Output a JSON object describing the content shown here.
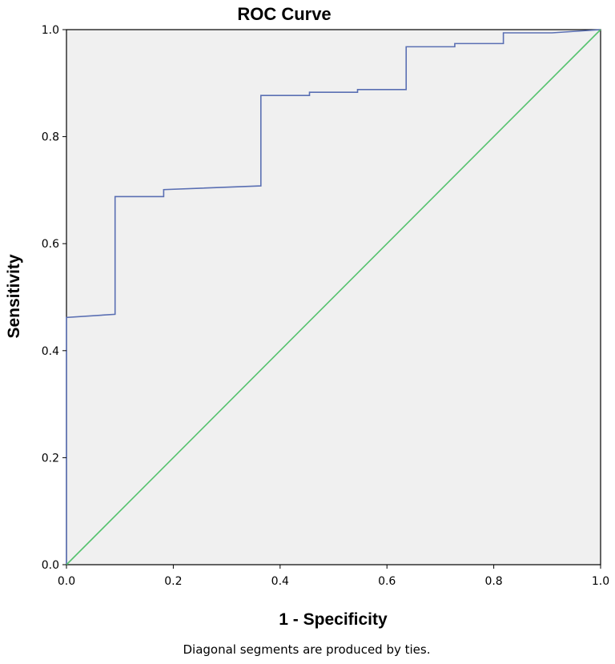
{
  "chart_data": {
    "type": "line",
    "title": "ROC Curve",
    "xlabel": "1 - Specificity",
    "ylabel": "Sensitivity",
    "footnote": "Diagonal segments are produced by ties.",
    "xlim": [
      0,
      1
    ],
    "ylim": [
      0,
      1
    ],
    "xticks": [
      "0.0",
      "0.2",
      "0.4",
      "0.6",
      "0.8",
      "1.0"
    ],
    "yticks": [
      "0.0",
      "0.2",
      "0.4",
      "0.6",
      "0.8",
      "1.0"
    ],
    "grid": false,
    "background_color": "#f0f0f0",
    "series": [
      {
        "color": "#5a6fb3",
        "x": [
          0.0,
          0.0,
          0.091,
          0.091,
          0.182,
          0.182,
          0.364,
          0.364,
          0.455,
          0.455,
          0.545,
          0.545,
          0.636,
          0.636,
          0.727,
          0.727,
          0.818,
          0.818,
          0.909,
          1.0
        ],
        "y": [
          0.0,
          0.462,
          0.468,
          0.688,
          0.688,
          0.701,
          0.708,
          0.877,
          0.877,
          0.883,
          0.883,
          0.888,
          0.888,
          0.968,
          0.968,
          0.974,
          0.974,
          0.994,
          0.994,
          1.0
        ]
      },
      {
        "color": "#55c26e",
        "x": [
          0,
          1
        ],
        "y": [
          0,
          1
        ]
      }
    ]
  }
}
